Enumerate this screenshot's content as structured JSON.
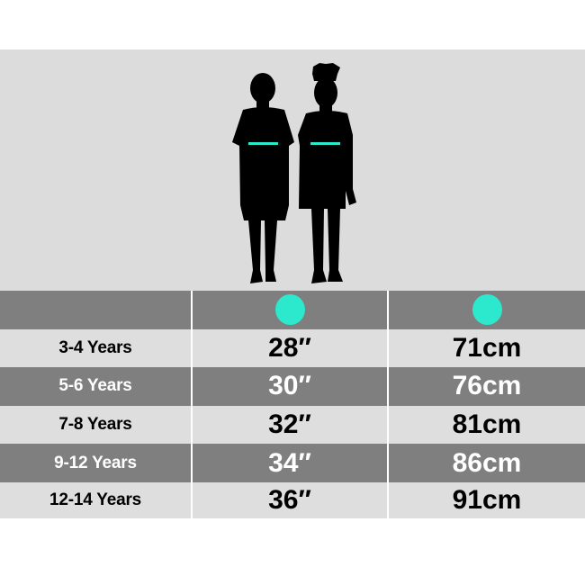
{
  "colors": {
    "accent": "#2ce8cc",
    "dark_row": "#7f7f7f",
    "light_row": "#dedede"
  },
  "illustration": {
    "icons": [
      "boy-silhouette",
      "girl-silhouette"
    ],
    "measure_marker": "chest-line"
  },
  "header": {
    "icons": [
      "teal-dot-inches",
      "teal-dot-cm"
    ]
  },
  "rows": [
    {
      "age": "3-4 Years",
      "inches": "28″",
      "cm": "71cm"
    },
    {
      "age": "5-6 Years",
      "inches": "30″",
      "cm": "76cm"
    },
    {
      "age": "7-8 Years",
      "inches": "32″",
      "cm": "81cm"
    },
    {
      "age": "9-12 Years",
      "inches": "34″",
      "cm": "86cm"
    },
    {
      "age": "12-14 Years",
      "inches": "36″",
      "cm": "91cm"
    }
  ]
}
